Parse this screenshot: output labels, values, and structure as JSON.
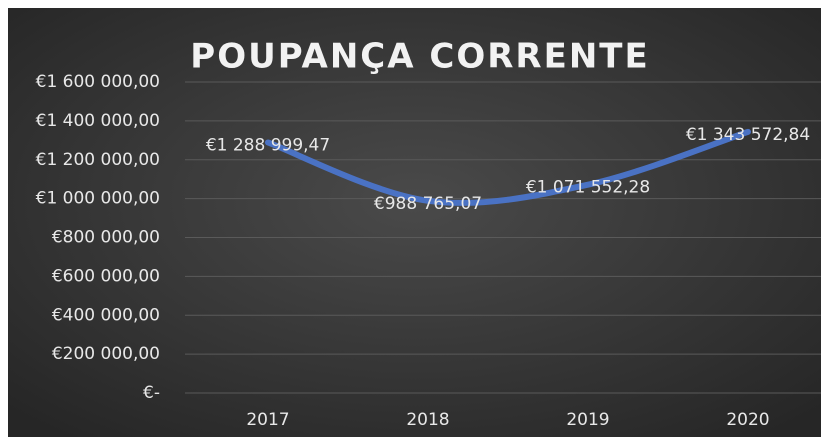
{
  "chart_data": {
    "type": "line",
    "title": "POUPANÇA CORRENTE",
    "categories": [
      "2017",
      "2018",
      "2019",
      "2020"
    ],
    "series": [
      {
        "name": "Poupança",
        "color": "#4a72c4",
        "values": [
          1288999.47,
          988765.07,
          1071552.28,
          1343572.84
        ],
        "value_labels": [
          "€1 288 999,47",
          "€988 765,07",
          "€1 071 552,28",
          "€1 343 572,84"
        ]
      }
    ],
    "ylim": [
      0,
      1600000
    ],
    "yticks": [
      {
        "value": 0,
        "label": "€-"
      },
      {
        "value": 200000,
        "label": "€200 000,00"
      },
      {
        "value": 400000,
        "label": "€400 000,00"
      },
      {
        "value": 600000,
        "label": "€600 000,00"
      },
      {
        "value": 800000,
        "label": "€800 000,00"
      },
      {
        "value": 1000000,
        "label": "€1 000 000,00"
      },
      {
        "value": 1200000,
        "label": "€1 200 000,00"
      },
      {
        "value": 1400000,
        "label": "€1 400 000,00"
      },
      {
        "value": 1600000,
        "label": "€1 600 000,00"
      }
    ],
    "grid": true,
    "smooth": true
  }
}
